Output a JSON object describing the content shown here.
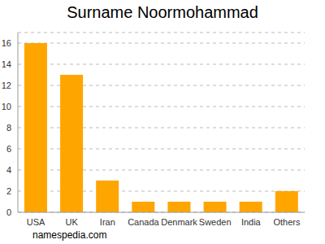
{
  "chart_data": {
    "type": "bar",
    "title": "Surname Noormohammad",
    "annotation": "namespedia.com",
    "categories": [
      "USA",
      "UK",
      "Iran",
      "Canada",
      "Denmark",
      "Sweden",
      "India",
      "Others"
    ],
    "values": [
      16,
      13,
      3,
      1,
      1,
      1,
      1,
      2
    ],
    "color": "#ffa500",
    "ylim": [
      0,
      17
    ],
    "yticks": [
      0,
      2,
      4,
      6,
      8,
      10,
      12,
      14,
      16
    ],
    "grid": true
  }
}
